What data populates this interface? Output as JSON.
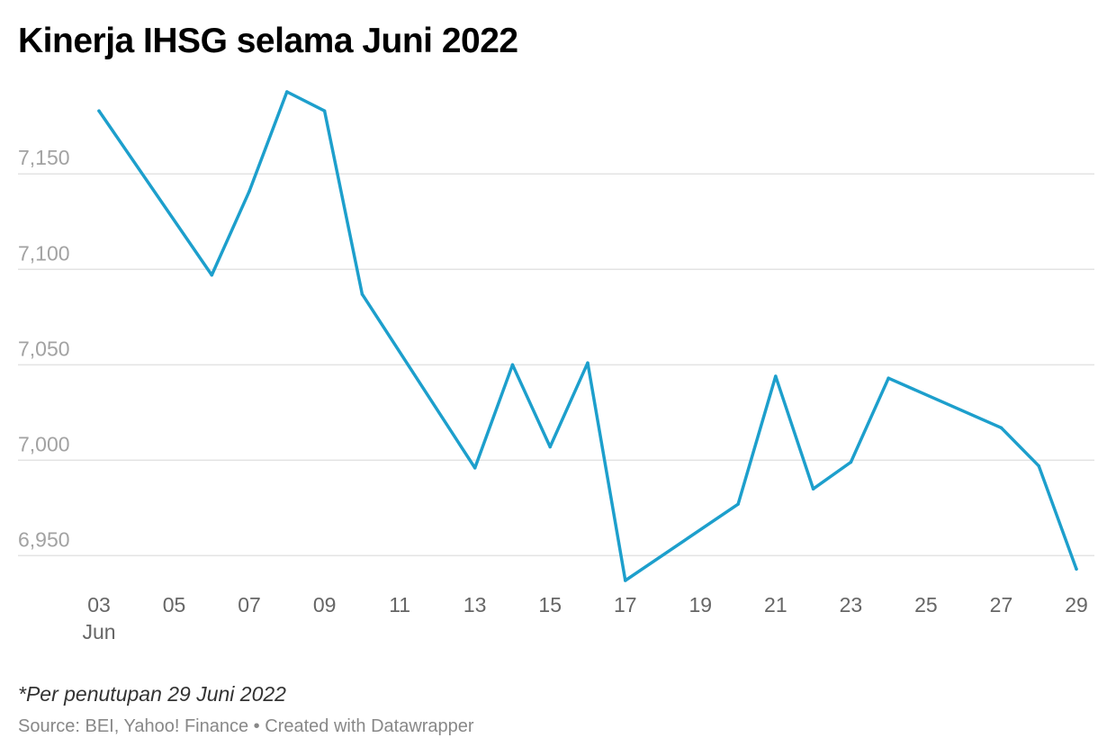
{
  "header": {
    "title": "Kinerja IHSG selama Juni 2022"
  },
  "notes": {
    "footnote": "*Per penutupan 29 Juni 2022",
    "source_label": "Source:",
    "source": "BEI, Yahoo! Finance",
    "separator": "•",
    "credit": "Created with Datawrapper"
  },
  "chart_data": {
    "type": "line",
    "title": "Kinerja IHSG selama Juni 2022",
    "xlabel": "",
    "ylabel": "",
    "x_domain": [
      3,
      29
    ],
    "ylim": [
      6937,
      7193
    ],
    "y_ticks": [
      6950,
      7000,
      7050,
      7100,
      7150
    ],
    "y_tick_labels": [
      "6,950",
      "7,000",
      "7,050",
      "7,100",
      "7,150"
    ],
    "x_ticks": [
      3,
      5,
      7,
      9,
      11,
      13,
      15,
      17,
      19,
      21,
      23,
      25,
      27,
      29
    ],
    "x_tick_labels": [
      "03",
      "05",
      "07",
      "09",
      "11",
      "13",
      "15",
      "17",
      "19",
      "21",
      "23",
      "25",
      "27",
      "29"
    ],
    "x_tick_sublabel": "Jun",
    "grid": "horizontal",
    "line_color": "#1d9fcc",
    "series": [
      {
        "x": [
          3,
          6,
          7,
          8,
          9,
          10,
          13,
          14,
          15,
          16,
          17,
          20,
          21,
          22,
          23,
          24,
          27,
          28,
          29
        ],
        "values": [
          7183,
          7097,
          7141,
          7193,
          7183,
          7087,
          6996,
          7050,
          7007,
          7051,
          6937,
          6977,
          7044,
          6985,
          6999,
          7043,
          7017,
          6997,
          6943
        ]
      }
    ]
  }
}
